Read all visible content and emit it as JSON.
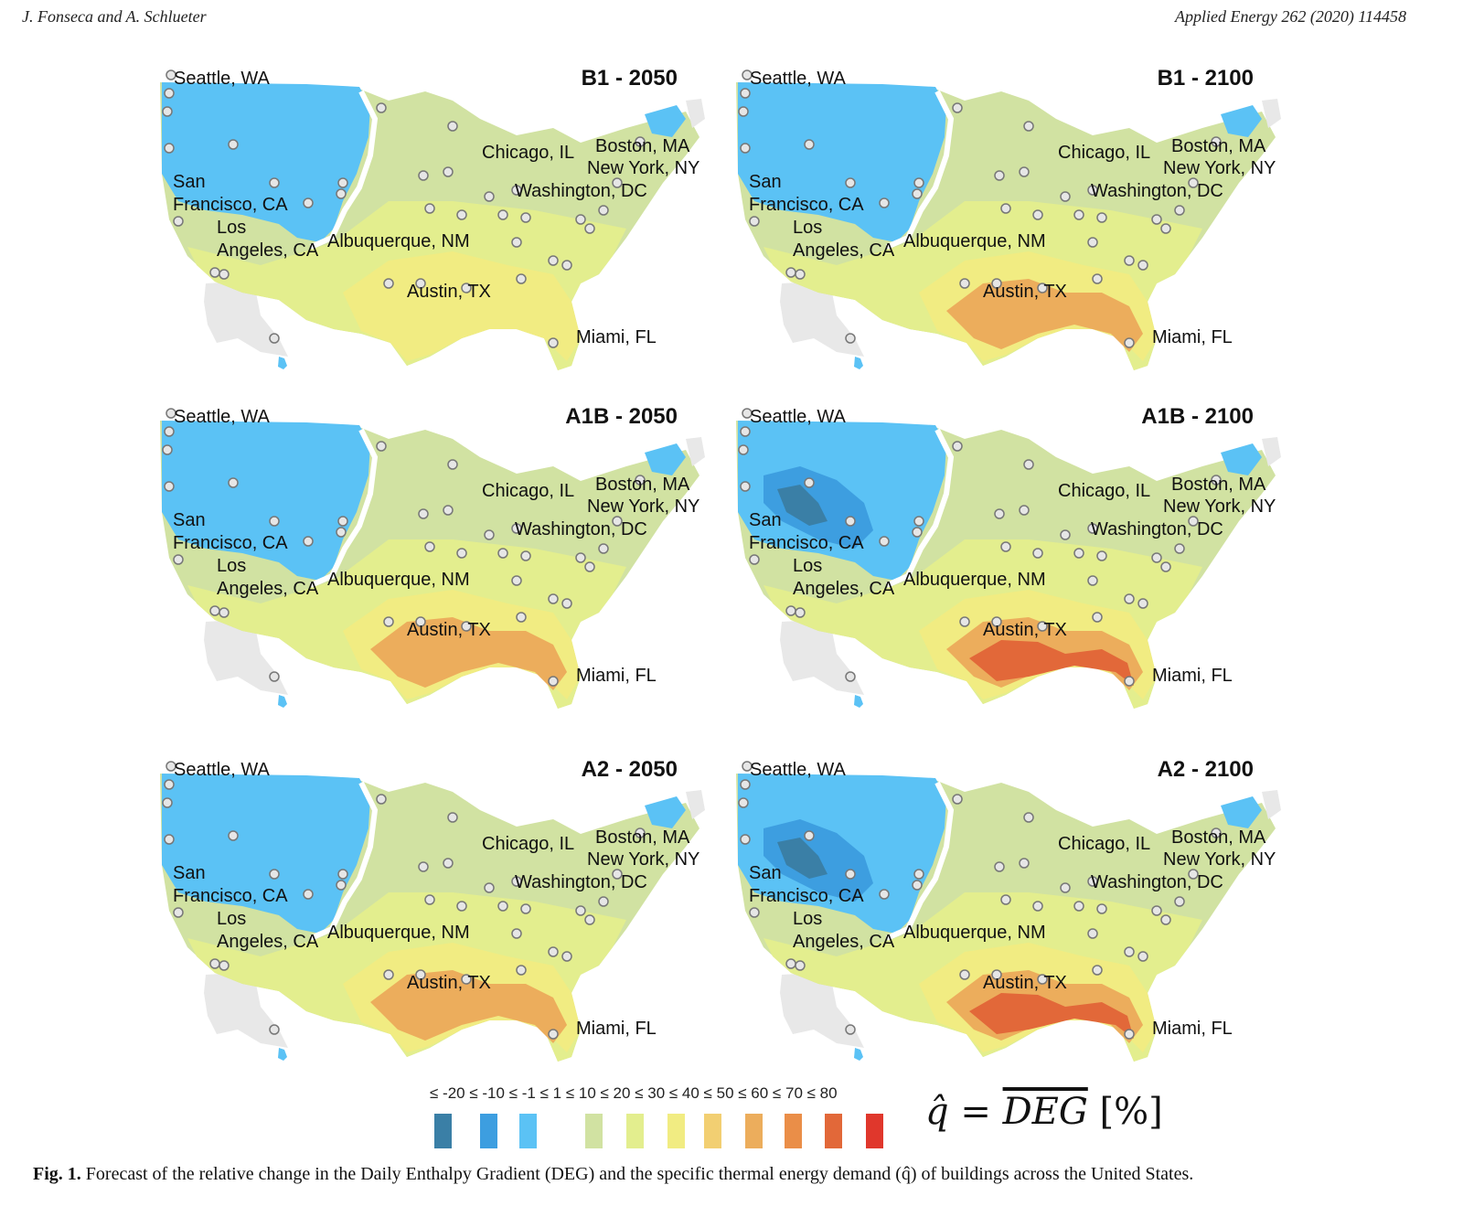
{
  "header": {
    "authors": "J. Fonseca and A. Schlueter",
    "journal": "Applied Energy 262 (2020) 114458"
  },
  "panels": [
    {
      "title": "B1 - 2050",
      "intensity": 1
    },
    {
      "title": "B1 - 2100",
      "intensity": 2
    },
    {
      "title": "A1B - 2050",
      "intensity": 2
    },
    {
      "title": "A1B - 2100",
      "intensity": 4
    },
    {
      "title": "A2 - 2050",
      "intensity": 2
    },
    {
      "title": "A2 - 2100",
      "intensity": 5
    }
  ],
  "cities": {
    "seattle": "Seattle, WA",
    "sf_1": "San",
    "sf_2": "Francisco, CA",
    "la_1": "Los",
    "la_2": "Angeles, CA",
    "albuquerque": "Albuquerque, NM",
    "chicago": "Chicago, IL",
    "boston": "Boston, MA",
    "newyork": "New York, NY",
    "washington": "Washington, DC",
    "austin": "Austin, TX",
    "miami": "Miami, FL"
  },
  "legend": {
    "labels": "≤ -20 ≤ -10 ≤ -1 ≤ 1 ≤ 10 ≤ 20 ≤ 30 ≤ 40 ≤ 50 ≤ 60 ≤ 70 ≤ 80",
    "colors": [
      "#3a7fa6",
      "#3d9ee0",
      "#5bc2f5",
      "#ffffff",
      "#d1e2a2",
      "#e3ee8e",
      "#f1ec82",
      "#f2cf72",
      "#ecad5c",
      "#ea8e48",
      "#e26839",
      "#e0372c"
    ]
  },
  "formula": {
    "lhs": "q̂",
    "eq": "=",
    "rhs": "DEG",
    "unit": "[%]"
  },
  "caption": {
    "label": "Fig. 1.",
    "text": "Forecast of the relative change in the Daily Enthalpy Gradient (DEG) and the specific thermal energy demand (q̂) of buildings across the United States."
  }
}
